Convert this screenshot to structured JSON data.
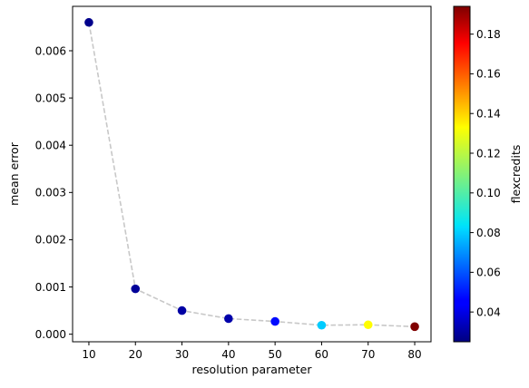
{
  "chart_data": {
    "type": "scatter",
    "title": "",
    "xlabel": "resolution parameter",
    "ylabel": "mean error",
    "colorbar_label": "flexcredits",
    "xlim": [
      6.5,
      83.5
    ],
    "ylim": [
      -0.00016,
      0.00694
    ],
    "x_ticks": [
      10,
      20,
      30,
      40,
      50,
      60,
      70,
      80
    ],
    "x_tick_labels": [
      "10",
      "20",
      "30",
      "40",
      "50",
      "60",
      "70",
      "80"
    ],
    "y_ticks": [
      0.0,
      0.001,
      0.002,
      0.003,
      0.004,
      0.005,
      0.006
    ],
    "y_tick_labels": [
      "0.000",
      "0.001",
      "0.002",
      "0.003",
      "0.004",
      "0.005",
      "0.006"
    ],
    "colorbar_range": [
      0.025,
      0.194
    ],
    "colorbar_ticks": [
      0.04,
      0.06,
      0.08,
      0.1,
      0.12,
      0.14,
      0.16,
      0.18
    ],
    "colorbar_tick_labels": [
      "0.04",
      "0.06",
      "0.08",
      "0.10",
      "0.12",
      "0.14",
      "0.16",
      "0.18"
    ],
    "colormap": "jet",
    "line_style": "dashed",
    "line_color": "#c8c8c8",
    "grid": false,
    "series": [
      {
        "x": [
          10,
          20,
          30,
          40,
          50,
          60,
          70,
          80
        ],
        "y": [
          0.0066,
          0.00096,
          0.0005,
          0.00033,
          0.00027,
          0.00019,
          0.0002,
          0.00016
        ],
        "color_values": [
          0.027,
          0.029,
          0.031,
          0.032,
          0.048,
          0.08,
          0.131,
          0.194
        ]
      }
    ]
  }
}
